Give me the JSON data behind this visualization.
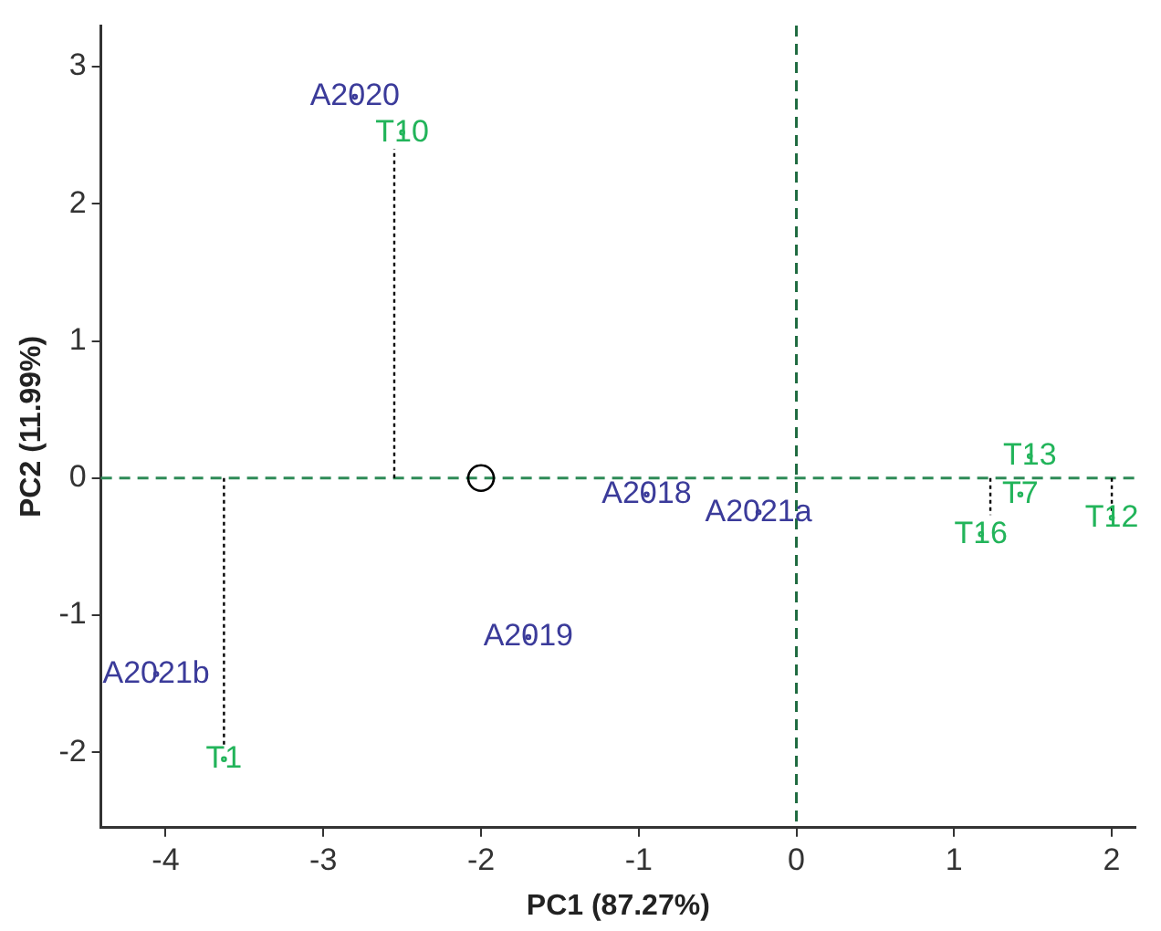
{
  "chart_data": {
    "type": "scatter",
    "xlabel": "PC1 (87.27%)",
    "ylabel": "PC2 (11.99%)",
    "xlim": [
      -4.41,
      2.15
    ],
    "xticks": [
      -4,
      -3,
      -2,
      -1,
      0,
      1,
      2
    ],
    "ylim": [
      -2.55,
      3.3
    ],
    "yticks": [
      -2,
      -1,
      0,
      1,
      2,
      3
    ],
    "grid": false,
    "legend": false,
    "series": [
      {
        "color": "#22b45a",
        "x": [
          -2.5,
          -3.63,
          1.48,
          1.42,
          1.17,
          2.0
        ],
        "values": [
          2.52,
          -2.05,
          0.16,
          -0.12,
          -0.41,
          -0.29
        ],
        "value_labels": [
          "T10",
          "T1",
          "T13",
          "T7",
          "T16",
          "T12"
        ]
      },
      {
        "color": "#3b3b9a",
        "x": [
          -2.8,
          -1.7,
          -4.06,
          -0.95,
          -0.24
        ],
        "values": [
          2.78,
          -1.16,
          -1.43,
          -0.12,
          -0.25
        ],
        "value_labels": [
          "A2020",
          "A2019",
          "A2021b",
          "A2018",
          "A2021a"
        ]
      },
      {
        "marker": "circle",
        "color": "#000000",
        "x": [
          -2
        ],
        "values": [
          0
        ]
      },
      {
        "type": "line",
        "marker": "none",
        "line_style": "dotted",
        "color": "#000000",
        "x": [
          -2.55,
          -2.55
        ],
        "values": [
          0,
          2.4
        ]
      },
      {
        "type": "line",
        "marker": "none",
        "line_style": "dotted",
        "color": "#000000",
        "x": [
          -3.63,
          -3.63
        ],
        "values": [
          0,
          -1.95
        ]
      },
      {
        "type": "line",
        "marker": "none",
        "line_style": "dotted",
        "color": "#000000",
        "x": [
          1.23,
          1.23
        ],
        "values": [
          0,
          -0.27
        ]
      },
      {
        "type": "line",
        "marker": "none",
        "line_style": "dotted",
        "color": "#000000",
        "x": [
          2.0,
          2.0
        ],
        "values": [
          0,
          -0.25
        ]
      }
    ],
    "ref_lines": [
      {
        "axis": "y",
        "value": 0,
        "color": "#2e8b57",
        "line_style": "dashed"
      },
      {
        "axis": "x",
        "value": 0,
        "color": "#1f6b40",
        "line_style": "dashed"
      }
    ]
  }
}
